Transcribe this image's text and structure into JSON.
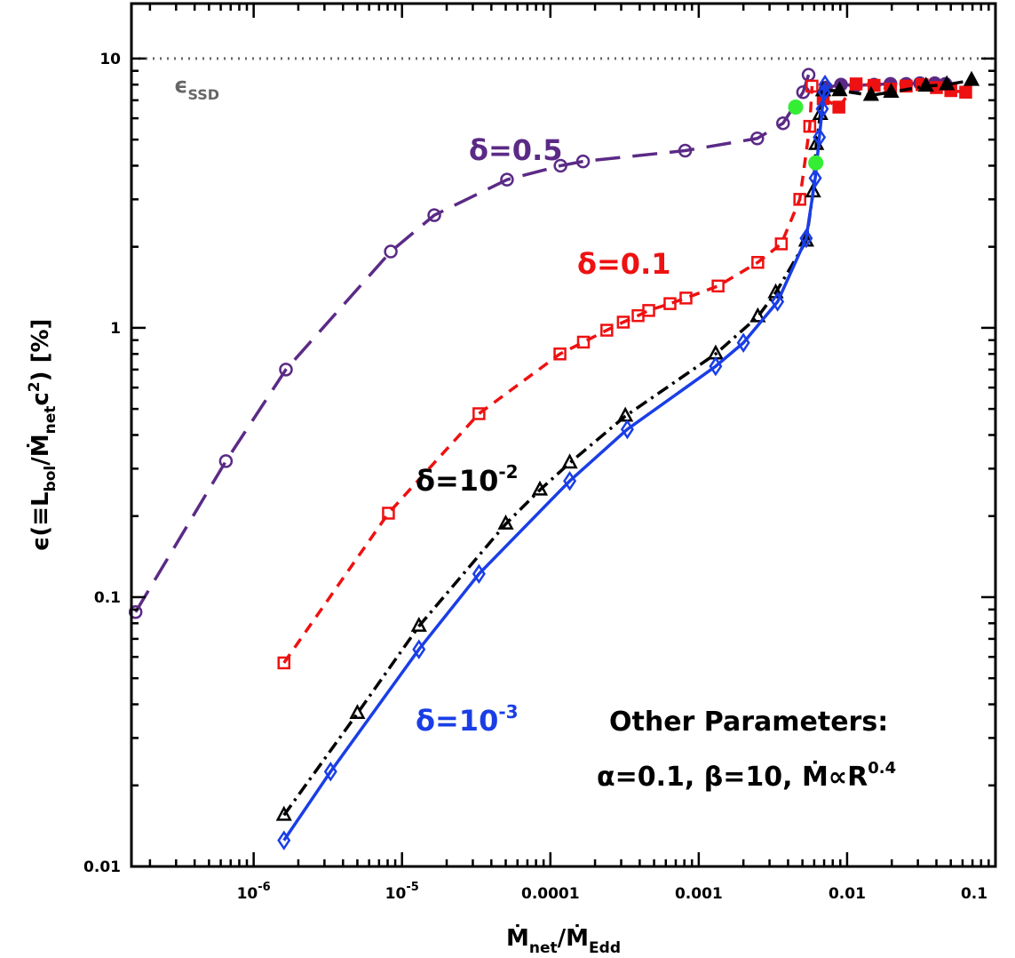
{
  "chart_data": {
    "type": "line",
    "xlabel": {
      "main": "Ṁ",
      "sub_a": "net",
      "sep": "/Ṁ",
      "sub_b": "Edd"
    },
    "ylabel": {
      "prefix": "ϵ(≡L",
      "sub_a": "bol",
      "mid": "/Ṁ",
      "sub_b": "net",
      "tail": "c",
      "sup": "2",
      "end": ") [%]"
    },
    "xscale": "log",
    "yscale": "log",
    "xlim": [
      1.5e-07,
      0.1
    ],
    "ylim": [
      0.01,
      16
    ],
    "x_ticks": [
      {
        "value": 1e-06,
        "base": "10",
        "exp": "-6"
      },
      {
        "value": 1e-05,
        "base": "10",
        "exp": "-5"
      },
      {
        "value": 0.0001,
        "base": "0.0001",
        "exp": ""
      },
      {
        "value": 0.001,
        "base": "0.001",
        "exp": ""
      },
      {
        "value": 0.01,
        "base": "0.01",
        "exp": ""
      },
      {
        "value": 0.1,
        "base": "0.1",
        "exp": ""
      }
    ],
    "y_ticks": [
      {
        "value": 0.01,
        "label": "0.01"
      },
      {
        "value": 0.1,
        "label": "0.1"
      },
      {
        "value": 1,
        "label": "1"
      },
      {
        "value": 10,
        "label": "10"
      }
    ],
    "reference_line": {
      "y": 10,
      "label_main": "ϵ",
      "label_sub": "SSD",
      "color": "#666666"
    },
    "series": [
      {
        "name": "δ=0.5",
        "label_main": "δ=0.5",
        "label_sup": "",
        "color": "#5b2a86",
        "dash": "28,14",
        "marker": "circle",
        "x": [
          1.6e-07,
          6.5e-07,
          1.65e-06,
          8.4e-06,
          1.65e-05,
          5.1e-05,
          0.000117,
          0.000166,
          0.00081,
          0.00248,
          0.0037,
          0.00505,
          0.0055
        ],
        "y": [
          0.088,
          0.32,
          0.7,
          1.92,
          2.62,
          3.55,
          4.0,
          4.15,
          4.55,
          5.05,
          5.75,
          7.5,
          8.7
        ],
        "x2": [
          0.0072,
          0.0091,
          0.0115,
          0.0152,
          0.0196,
          0.025,
          0.031,
          0.039,
          0.046
        ],
        "y2": [
          7.8,
          8.0,
          7.95,
          8.0,
          8.05,
          8.05,
          8.1,
          8.1,
          8.05
        ],
        "filled_markers": [
          {
            "x": 0.0045,
            "y": 6.6,
            "color": "#33ee33"
          }
        ]
      },
      {
        "name": "δ=0.1",
        "label_main": "δ=0.1",
        "label_sup": "",
        "color": "#ee1111",
        "dash": "12,9",
        "marker": "square",
        "x": [
          1.6e-06,
          8.1e-06,
          3.3e-05,
          0.000116,
          0.000167,
          0.00024,
          0.00031,
          0.00039,
          0.00046,
          0.00064,
          0.00082,
          0.00135,
          0.0025,
          0.0036,
          0.0048,
          0.0056,
          0.0058
        ],
        "y": [
          0.057,
          0.205,
          0.48,
          0.8,
          0.885,
          0.98,
          1.05,
          1.11,
          1.16,
          1.23,
          1.29,
          1.43,
          1.75,
          2.05,
          3.0,
          5.6,
          7.9
        ],
        "x2": [
          0.0069,
          0.0088,
          0.0115,
          0.0152,
          0.0196,
          0.025,
          0.032,
          0.04,
          0.05,
          0.063
        ],
        "y2": [
          7.1,
          6.6,
          8.05,
          7.95,
          7.7,
          7.9,
          8.0,
          7.8,
          7.6,
          7.5
        ],
        "filled_markers": []
      },
      {
        "name": "δ=10⁻²",
        "label_main": "δ=10",
        "label_sup": "-2",
        "color": "#000000",
        "dash": "14,6,3,6",
        "marker": "triangle",
        "x": [
          1.6e-06,
          5e-06,
          1.3e-05,
          5e-05,
          8.5e-05,
          0.000135,
          0.00032,
          0.0013,
          0.0025,
          0.0033,
          0.0053,
          0.0059,
          0.0062,
          0.0066,
          0.0069
        ],
        "y": [
          0.0155,
          0.037,
          0.078,
          0.187,
          0.25,
          0.315,
          0.47,
          0.8,
          1.1,
          1.35,
          2.1,
          3.2,
          4.8,
          6.2,
          7.6
        ],
        "x2": [
          0.0069,
          0.0089,
          0.0145,
          0.0198,
          0.034,
          0.047,
          0.069
        ],
        "y2": [
          7.6,
          7.6,
          7.3,
          7.5,
          7.9,
          8.0,
          8.3
        ],
        "filled_markers": []
      },
      {
        "name": "δ=10⁻³",
        "label_main": "δ=10",
        "label_sup": "-3",
        "color": "#1a3ee6",
        "dash": "",
        "marker": "diamond",
        "x": [
          1.6e-06,
          3.3e-06,
          1.3e-05,
          3.3e-05,
          0.000135,
          0.00033,
          0.0013,
          0.002,
          0.0034,
          0.0053,
          0.0061,
          0.0065,
          0.0068,
          0.007,
          0.0071
        ],
        "y": [
          0.0125,
          0.0225,
          0.064,
          0.122,
          0.27,
          0.42,
          0.72,
          0.88,
          1.25,
          2.15,
          3.6,
          5.1,
          6.5,
          7.5,
          8.0
        ],
        "x2": [],
        "y2": [],
        "filled_markers": [
          {
            "x": 0.00615,
            "y": 4.1,
            "color": "#33ee33"
          }
        ]
      }
    ],
    "annotation": {
      "line1": "Other Parameters:",
      "alpha": "α=0.1, β=10, ",
      "mdot": "Ṁ∝R",
      "mdot_sup": "0.4"
    },
    "grid": false,
    "legend": "inline-labels"
  }
}
